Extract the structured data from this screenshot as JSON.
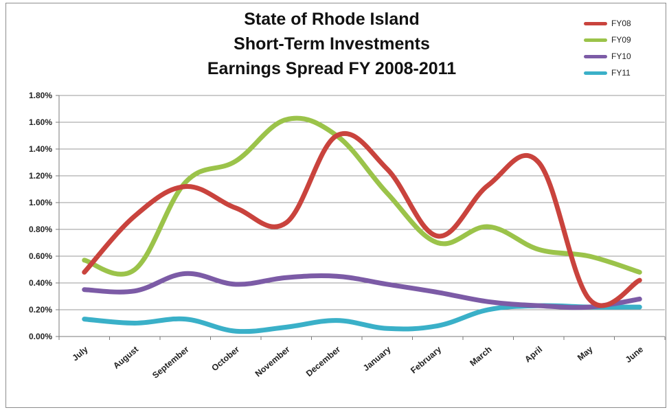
{
  "chart_data": {
    "type": "line",
    "title": [
      "State of Rhode Island",
      "Short-Term Investments",
      "Earnings Spread FY 2008-2011"
    ],
    "categories": [
      "July",
      "August",
      "September",
      "October",
      "November",
      "December",
      "January",
      "February",
      "March",
      "April",
      "May",
      "June"
    ],
    "yticks": [
      "0.00%",
      "0.20%",
      "0.40%",
      "0.60%",
      "0.80%",
      "1.00%",
      "1.20%",
      "1.40%",
      "1.60%",
      "1.80%"
    ],
    "ylim": [
      0,
      1.8
    ],
    "grid": true,
    "legend_position": "top-right",
    "series": [
      {
        "name": "FY08",
        "color": "#c9433d",
        "values": [
          0.48,
          0.9,
          1.12,
          0.96,
          0.85,
          1.5,
          1.25,
          0.75,
          1.13,
          1.3,
          0.28,
          0.42
        ]
      },
      {
        "name": "FY09",
        "color": "#9bc34a",
        "values": [
          0.57,
          0.5,
          1.15,
          1.31,
          1.62,
          1.5,
          1.07,
          0.7,
          0.82,
          0.65,
          0.6,
          0.48
        ]
      },
      {
        "name": "FY10",
        "color": "#7c5ba6",
        "values": [
          0.35,
          0.34,
          0.47,
          0.39,
          0.44,
          0.45,
          0.39,
          0.33,
          0.26,
          0.23,
          0.22,
          0.28
        ]
      },
      {
        "name": "FY11",
        "color": "#3ab0c8",
        "values": [
          0.13,
          0.1,
          0.13,
          0.04,
          0.07,
          0.12,
          0.06,
          0.08,
          0.2,
          0.23,
          0.22,
          0.22
        ]
      }
    ]
  }
}
